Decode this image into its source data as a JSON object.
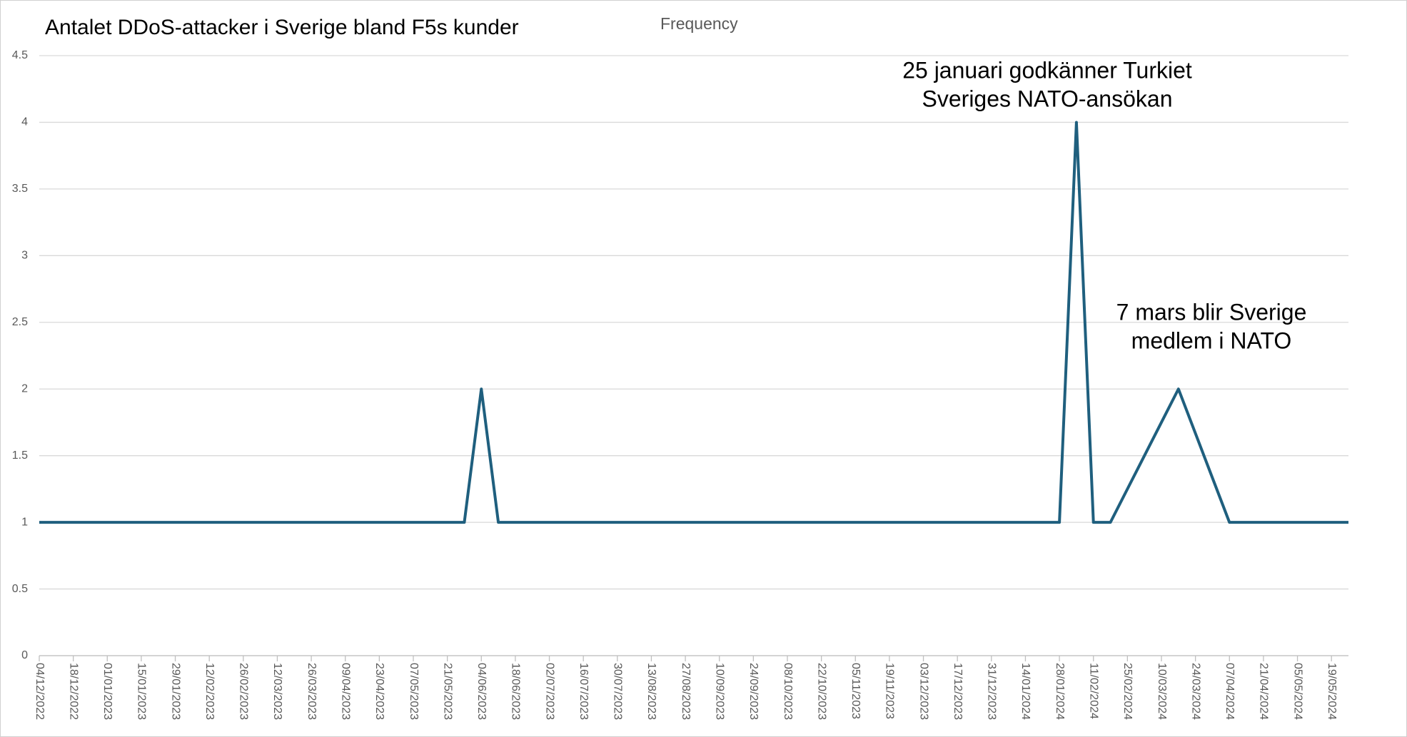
{
  "chart_data": {
    "type": "line",
    "title": "Antalet DDoS-attacker i Sverige bland F5s kunder",
    "subtitle": "Frequency",
    "categories": [
      "04/12/2022",
      null,
      "18/12/2022",
      null,
      "01/01/2023",
      null,
      "15/01/2023",
      null,
      "29/01/2023",
      null,
      "12/02/2023",
      null,
      "26/02/2023",
      null,
      "12/03/2023",
      null,
      "26/03/2023",
      null,
      "09/04/2023",
      null,
      "23/04/2023",
      null,
      "07/05/2023",
      null,
      "21/05/2023",
      null,
      "04/06/2023",
      null,
      "18/06/2023",
      null,
      "02/07/2023",
      null,
      "16/07/2023",
      null,
      "30/07/2023",
      null,
      "13/08/2023",
      null,
      "27/08/2023",
      null,
      "10/09/2023",
      null,
      "24/09/2023",
      null,
      "08/10/2023",
      null,
      "22/10/2023",
      null,
      "05/11/2023",
      null,
      "19/11/2023",
      null,
      "03/12/2023",
      null,
      "17/12/2023",
      null,
      "31/12/2023",
      null,
      "14/01/2024",
      null,
      "28/01/2024",
      null,
      "11/02/2024",
      null,
      "25/02/2024",
      null,
      "10/03/2024",
      null,
      "24/03/2024",
      null,
      "07/04/2024",
      null,
      "21/04/2024",
      null,
      "05/05/2024",
      null,
      "19/05/2024",
      null
    ],
    "series": [
      {
        "name": "Frequency",
        "color": "#1f5f7e",
        "values": [
          1,
          1,
          1,
          1,
          1,
          1,
          1,
          1,
          1,
          1,
          1,
          1,
          1,
          1,
          1,
          1,
          1,
          1,
          1,
          1,
          1,
          1,
          1,
          1,
          1,
          1,
          2,
          1,
          1,
          1,
          1,
          1,
          1,
          1,
          1,
          1,
          1,
          1,
          1,
          1,
          1,
          1,
          1,
          1,
          1,
          1,
          1,
          1,
          1,
          1,
          1,
          1,
          1,
          1,
          1,
          1,
          1,
          1,
          1,
          1,
          1,
          4,
          1,
          1,
          1.25,
          1.5,
          1.75,
          2,
          1.667,
          1.333,
          1,
          1,
          1,
          1,
          1,
          1,
          1,
          1
        ]
      }
    ],
    "ylim": [
      0,
      4.5
    ],
    "yticks": [
      0,
      0.5,
      1,
      1.5,
      2,
      2.5,
      3,
      3.5,
      4,
      4.5
    ],
    "grid": true,
    "annotations": [
      {
        "lines": [
          "25 januari godkänner Turkiet",
          "Sveriges NATO-ansökan"
        ]
      },
      {
        "lines": [
          "7 mars blir Sverige",
          "medlem i NATO"
        ]
      }
    ]
  }
}
